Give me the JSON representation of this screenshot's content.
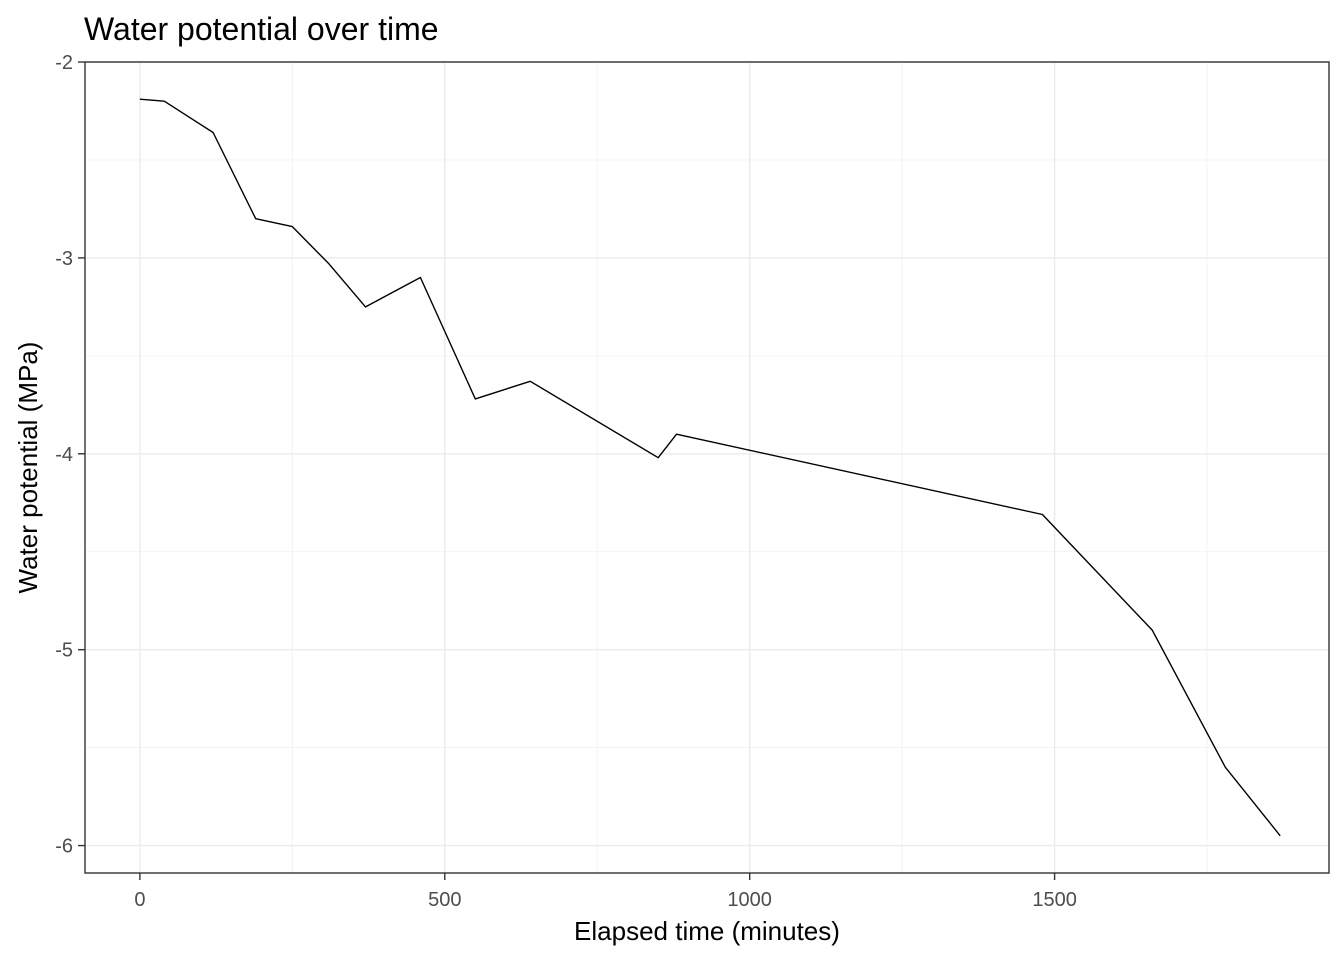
{
  "chart_data": {
    "type": "line",
    "title": "Water potential over time",
    "xlabel": "Elapsed time (minutes)",
    "ylabel": "Water potential (MPa)",
    "xlim": [
      -90,
      1950
    ],
    "ylim": [
      -6.14,
      -2
    ],
    "xticks": [
      0,
      500,
      1000,
      1500
    ],
    "yticks": [
      -2,
      -3,
      -4,
      -5,
      -6
    ],
    "grid": true,
    "legend": "none",
    "line_color": "#000000",
    "series": [
      {
        "x": [
          0,
          40,
          120,
          190,
          250,
          310,
          370,
          460,
          550,
          640,
          850,
          880,
          1480,
          1660,
          1780,
          1870
        ],
        "y": [
          -2.19,
          -2.2,
          -2.36,
          -2.8,
          -2.84,
          -3.03,
          -3.25,
          -3.1,
          -3.72,
          -3.63,
          -4.02,
          -3.9,
          -4.31,
          -4.9,
          -5.6,
          -5.95
        ]
      }
    ]
  }
}
